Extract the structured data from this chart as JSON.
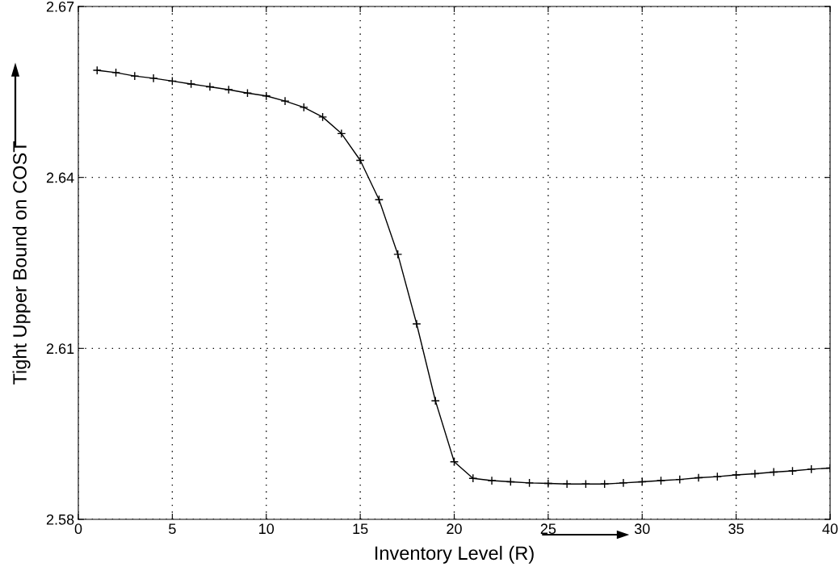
{
  "chart_data": {
    "type": "line",
    "xlabel": "Inventory Level (R)",
    "ylabel": "Tight Upper Bound on COST",
    "x": [
      1,
      2,
      3,
      4,
      5,
      6,
      7,
      8,
      9,
      10,
      11,
      12,
      13,
      14,
      15,
      16,
      17,
      18,
      19,
      20,
      21,
      22,
      23,
      24,
      25,
      26,
      27,
      28,
      29,
      30,
      31,
      32,
      33,
      34,
      35,
      36,
      37,
      38,
      39,
      40
    ],
    "series": [
      {
        "color": "#000000",
        "values": [
          2.6588,
          2.6584,
          2.6578,
          2.6574,
          2.6569,
          2.6564,
          2.6559,
          2.6554,
          2.6548,
          2.6543,
          2.6534,
          2.6523,
          2.6506,
          2.6477,
          2.643,
          2.6361,
          2.6265,
          2.6143,
          2.6008,
          2.5901,
          2.5872,
          2.5868,
          2.5866,
          2.5864,
          2.5863,
          2.5862,
          2.5862,
          2.5862,
          2.5864,
          2.5866,
          2.5868,
          2.587,
          2.5873,
          2.5875,
          2.5878,
          2.588,
          2.5883,
          2.5885,
          2.5888,
          2.589
        ]
      }
    ],
    "xlim": [
      0,
      40
    ],
    "xticks": [
      0,
      5,
      10,
      15,
      20,
      25,
      30,
      35,
      40
    ],
    "ylim": [
      2.58,
      2.67
    ],
    "yticks": [
      2.58,
      2.61,
      2.64,
      2.67
    ],
    "grid": true,
    "marker": "cross",
    "line_style": "solid"
  }
}
